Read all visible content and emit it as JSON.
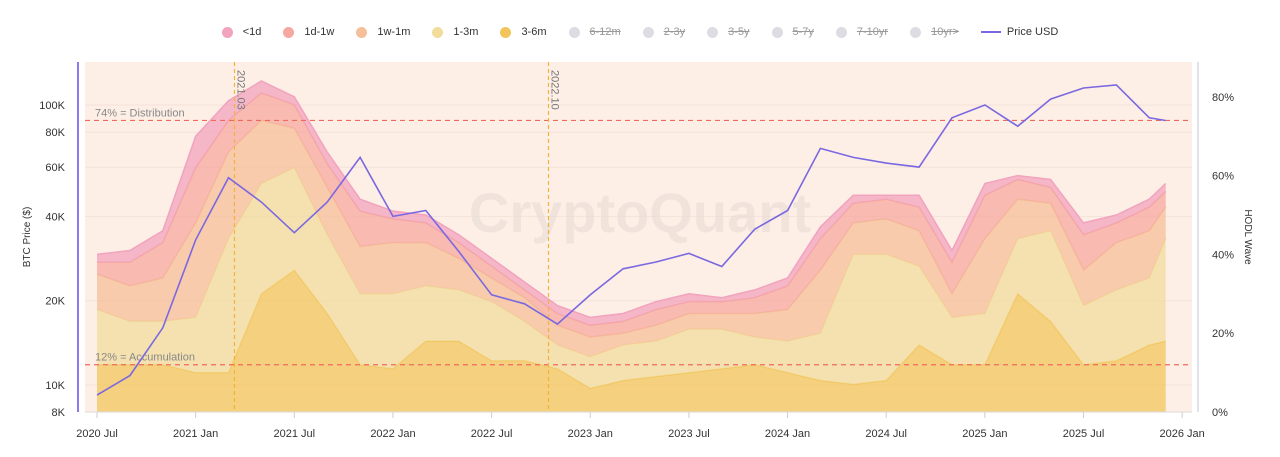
{
  "legend": [
    {
      "label": "<1d",
      "color": "#f2a3bd",
      "active": true
    },
    {
      "label": "1d-1w",
      "color": "#f5a89f",
      "active": true
    },
    {
      "label": "1w-1m",
      "color": "#f5bf9a",
      "active": true
    },
    {
      "label": "1-3m",
      "color": "#f1dc9c",
      "active": true
    },
    {
      "label": "3-6m",
      "color": "#f2c55c",
      "active": true
    },
    {
      "label": "6-12m",
      "color": "#dcdce3",
      "active": false
    },
    {
      "label": "2-3y",
      "color": "#dcdce3",
      "active": false
    },
    {
      "label": "3-5y",
      "color": "#dcdce3",
      "active": false
    },
    {
      "label": "5-7y",
      "color": "#dcdce3",
      "active": false
    },
    {
      "label": "7-10yr",
      "color": "#dcdce3",
      "active": false
    },
    {
      "label": "10yr>",
      "color": "#dcdce3",
      "active": false
    },
    {
      "label": "Price USD",
      "color": "#7b68e0",
      "active": true,
      "type": "line"
    }
  ],
  "watermark": "CryptoQuant",
  "chart_data": {
    "type": "area",
    "stacked": true,
    "ylabel_left": "BTC Price ($)",
    "ylabel_right": "HODL Wave",
    "left_scale": "log",
    "left_ylim": [
      8000,
      130000
    ],
    "left_ticks": [
      {
        "v": 8000,
        "label": "8K"
      },
      {
        "v": 10000,
        "label": "10K"
      },
      {
        "v": 20000,
        "label": "20K"
      },
      {
        "v": 40000,
        "label": "40K"
      },
      {
        "v": 60000,
        "label": "60K"
      },
      {
        "v": 80000,
        "label": "80K"
      },
      {
        "v": 100000,
        "label": "100K"
      }
    ],
    "right_ylim": [
      0,
      89
    ],
    "right_ticks": [
      {
        "v": 0,
        "label": "0%"
      },
      {
        "v": 20,
        "label": "20%"
      },
      {
        "v": 40,
        "label": "40%"
      },
      {
        "v": 60,
        "label": "60%"
      },
      {
        "v": 80,
        "label": "80%"
      }
    ],
    "x_ticks": [
      {
        "d": "2020-07",
        "label": "2020 Jul"
      },
      {
        "d": "2021-01",
        "label": "2021 Jan"
      },
      {
        "d": "2021-07",
        "label": "2021 Jul"
      },
      {
        "d": "2022-01",
        "label": "2022 Jan"
      },
      {
        "d": "2022-07",
        "label": "2022 Jul"
      },
      {
        "d": "2023-01",
        "label": "2023 Jan"
      },
      {
        "d": "2023-07",
        "label": "2023 Jul"
      },
      {
        "d": "2024-01",
        "label": "2024 Jan"
      },
      {
        "d": "2024-07",
        "label": "2024 Jul"
      },
      {
        "d": "2025-01",
        "label": "2025 Jan"
      },
      {
        "d": "2025-07",
        "label": "2025 Jul"
      },
      {
        "d": "2026-01",
        "label": "2026 Jan"
      }
    ],
    "x": [
      "2020-07",
      "2020-09",
      "2020-11",
      "2021-01",
      "2021-03",
      "2021-05",
      "2021-07",
      "2021-09",
      "2021-11",
      "2022-01",
      "2022-03",
      "2022-05",
      "2022-07",
      "2022-09",
      "2022-11",
      "2023-01",
      "2023-03",
      "2023-05",
      "2023-07",
      "2023-09",
      "2023-11",
      "2024-01",
      "2024-03",
      "2024-05",
      "2024-07",
      "2024-09",
      "2024-11",
      "2025-01",
      "2025-03",
      "2025-05",
      "2025-07",
      "2025-09",
      "2025-11",
      "2025-12"
    ],
    "series": [
      {
        "name": "3-6m",
        "color": "#f2c55c",
        "values": [
          12,
          12,
          12,
          10,
          10,
          30,
          36,
          25,
          12,
          11,
          18,
          18,
          13,
          13,
          11,
          6,
          8,
          9,
          10,
          11,
          12,
          10,
          8,
          7,
          8,
          17,
          12,
          12,
          30,
          23,
          12,
          13,
          17,
          18
        ]
      },
      {
        "name": "1-3m",
        "color": "#f1dc9c",
        "values": [
          14,
          11,
          11,
          14,
          34,
          28,
          26,
          20,
          18,
          19,
          14,
          13,
          15,
          10,
          6,
          8,
          9,
          9,
          11,
          10,
          7,
          8,
          12,
          33,
          32,
          20,
          12,
          13,
          14,
          23,
          15,
          18,
          17,
          26
        ]
      },
      {
        "name": "1w-1m",
        "color": "#f5bf9a",
        "values": [
          9,
          9,
          11,
          24,
          22,
          16,
          10,
          12,
          12,
          13,
          11,
          8,
          6,
          6,
          5,
          5,
          3,
          4,
          4,
          4,
          6,
          8,
          16,
          8,
          9,
          9,
          6,
          19,
          10,
          7,
          9,
          12,
          12,
          8
        ]
      },
      {
        "name": "1d-1w",
        "color": "#f5a89f",
        "values": [
          3,
          6,
          9,
          14,
          8,
          7,
          6,
          6,
          9,
          6,
          5,
          4,
          3,
          2,
          3,
          3,
          3,
          4,
          3,
          3,
          4,
          6,
          8,
          5,
          5,
          6,
          8,
          11,
          5,
          4,
          9,
          5,
          6,
          4
        ]
      },
      {
        "name": "<1d",
        "color": "#f2a3bd",
        "values": [
          2,
          3,
          3,
          8,
          5,
          3,
          2,
          3,
          3,
          2,
          2,
          2,
          2,
          2,
          2,
          2,
          2,
          2,
          2,
          1,
          2,
          2,
          3,
          2,
          1,
          3,
          3,
          3,
          1,
          2,
          3,
          2,
          2,
          2
        ]
      }
    ],
    "price": {
      "name": "Price USD",
      "color": "#7b68e0",
      "values": [
        9200,
        10800,
        16000,
        33000,
        55000,
        45000,
        35000,
        45000,
        65000,
        40000,
        42000,
        30000,
        21000,
        19500,
        16500,
        21000,
        26000,
        27500,
        29500,
        26500,
        36000,
        42000,
        70000,
        65000,
        62000,
        60000,
        90000,
        100000,
        84000,
        105000,
        115000,
        118000,
        90000,
        88000
      ]
    },
    "hlines": [
      {
        "v": 74,
        "label": "74% = Distribution"
      },
      {
        "v": 12,
        "label": "12% = Accumulation"
      }
    ],
    "vlines": [
      {
        "d": "2021-03-12",
        "label": "2021.03"
      },
      {
        "d": "2022-10-15",
        "label": "2022.10"
      }
    ],
    "grid": true,
    "legend_position": "top"
  }
}
